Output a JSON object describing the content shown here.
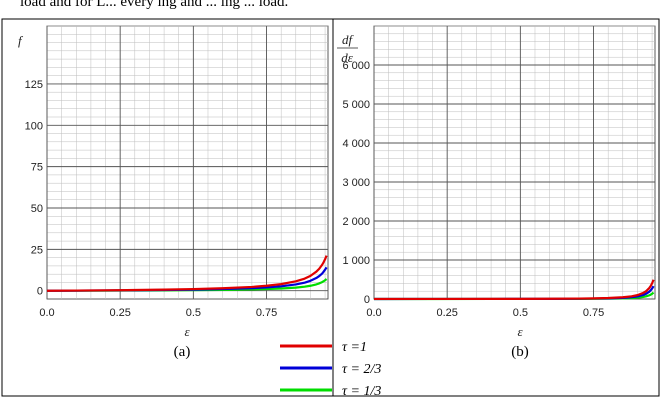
{
  "top_text": "load and for L... every ing and ... ing ... load.",
  "legend": {
    "items": [
      {
        "label": "τ =1",
        "color": "#e00000"
      },
      {
        "label": "τ = 2/3",
        "color": "#0000d8"
      },
      {
        "label": "τ = 1/3",
        "color": "#00dd00"
      }
    ]
  },
  "chart_data": [
    {
      "type": "line",
      "panel_label": "(a)",
      "ylabel": "f",
      "xlabel": "ε",
      "xlim": [
        0,
        0.96
      ],
      "ylim": [
        -5,
        160
      ],
      "xticks": [
        0.0,
        0.25,
        0.5,
        0.75
      ],
      "xtick_labels": [
        "0.0",
        "0.25",
        "0.5",
        "0.75"
      ],
      "yticks": [
        0,
        25,
        50,
        75,
        100,
        125
      ],
      "ytick_labels": [
        "0",
        "25",
        "50",
        "75",
        "100",
        "125"
      ],
      "grid": true,
      "series": [
        {
          "name": "τ =1",
          "color": "#e00000",
          "x": [
            0,
            0.1,
            0.2,
            0.3,
            0.4,
            0.5,
            0.6,
            0.7,
            0.75,
            0.8,
            0.85,
            0.88,
            0.9,
            0.92,
            0.93,
            0.94,
            0.945,
            0.95,
            0.955
          ],
          "y": [
            0,
            0.1,
            0.25,
            0.43,
            0.67,
            1.0,
            1.5,
            2.3,
            3.0,
            4.0,
            5.7,
            7.3,
            9.0,
            11.5,
            13.3,
            15.7,
            17.2,
            19.0,
            21.2
          ]
        },
        {
          "name": "τ = 2/3",
          "color": "#0000d8",
          "x": [
            0,
            0.1,
            0.2,
            0.3,
            0.4,
            0.5,
            0.6,
            0.7,
            0.75,
            0.8,
            0.85,
            0.88,
            0.9,
            0.92,
            0.93,
            0.94,
            0.945,
            0.95,
            0.955
          ],
          "y": [
            0,
            0.07,
            0.17,
            0.29,
            0.44,
            0.67,
            1.0,
            1.56,
            2.0,
            2.67,
            3.78,
            4.89,
            6.0,
            7.67,
            8.86,
            10.4,
            11.5,
            12.7,
            14.1
          ]
        },
        {
          "name": "τ = 1/3",
          "color": "#00dd00",
          "x": [
            0,
            0.1,
            0.2,
            0.3,
            0.4,
            0.5,
            0.6,
            0.7,
            0.75,
            0.8,
            0.85,
            0.88,
            0.9,
            0.92,
            0.93,
            0.94,
            0.945,
            0.95,
            0.955
          ],
          "y": [
            0,
            0.04,
            0.08,
            0.14,
            0.22,
            0.33,
            0.5,
            0.78,
            1.0,
            1.33,
            1.89,
            2.44,
            3.0,
            3.83,
            4.43,
            5.22,
            5.73,
            6.33,
            7.07
          ]
        }
      ]
    },
    {
      "type": "line",
      "panel_label": "(b)",
      "ylabel": "df/dε",
      "xlabel": "ε",
      "xlim": [
        0,
        0.96
      ],
      "ylim": [
        0,
        7000
      ],
      "xticks": [
        0.0,
        0.25,
        0.5,
        0.75
      ],
      "xtick_labels": [
        "0.0",
        "0.25",
        "0.5",
        "0.75"
      ],
      "yticks": [
        0,
        1000,
        2000,
        3000,
        4000,
        5000,
        6000
      ],
      "ytick_labels": [
        "0",
        "1 000",
        "2 000",
        "3 000",
        "4 000",
        "5 000",
        "6 000"
      ],
      "grid": true,
      "series": [
        {
          "name": "τ =1",
          "color": "#e00000",
          "x": [
            0,
            0.2,
            0.4,
            0.5,
            0.6,
            0.7,
            0.75,
            0.8,
            0.85,
            0.88,
            0.9,
            0.92,
            0.93,
            0.94,
            0.945,
            0.95,
            0.955
          ],
          "y": [
            1,
            1.6,
            2.8,
            4,
            6.3,
            11,
            16,
            25,
            44,
            69,
            100,
            156,
            204,
            278,
            331,
            400,
            494
          ]
        },
        {
          "name": "τ = 2/3",
          "color": "#0000d8",
          "x": [
            0,
            0.2,
            0.4,
            0.5,
            0.6,
            0.7,
            0.75,
            0.8,
            0.85,
            0.88,
            0.9,
            0.92,
            0.93,
            0.94,
            0.945,
            0.95,
            0.955
          ],
          "y": [
            0.7,
            1.0,
            1.9,
            2.7,
            4.2,
            7.4,
            10.7,
            16.7,
            29.6,
            46.3,
            66.7,
            104,
            136,
            185,
            220,
            267,
            329
          ]
        },
        {
          "name": "τ = 1/3",
          "color": "#00dd00",
          "x": [
            0,
            0.2,
            0.4,
            0.5,
            0.6,
            0.7,
            0.75,
            0.8,
            0.85,
            0.88,
            0.9,
            0.92,
            0.93,
            0.94,
            0.945,
            0.95,
            0.955
          ],
          "y": [
            0.3,
            0.5,
            0.9,
            1.3,
            2.1,
            3.7,
            5.3,
            8.3,
            14.8,
            23.1,
            33.3,
            52.1,
            68.0,
            92.6,
            110,
            133,
            165
          ]
        }
      ]
    }
  ]
}
